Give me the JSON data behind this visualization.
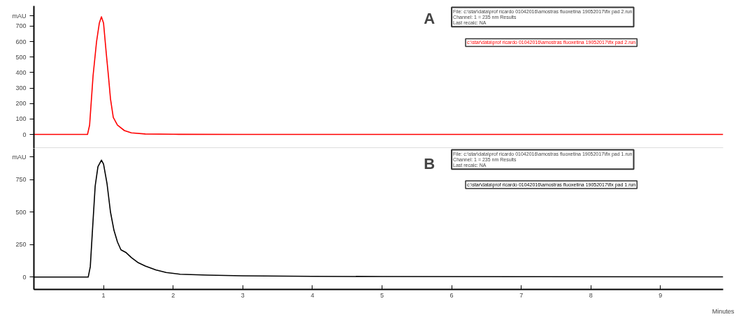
{
  "chart_data": [
    {
      "type": "line",
      "title": "A",
      "ylabel": "mAU",
      "xlim": [
        0,
        9.9
      ],
      "ylim": [
        -90,
        830
      ],
      "yticks": [
        0,
        100,
        200,
        300,
        400,
        500,
        600,
        700
      ],
      "tick_labels": "y",
      "grid": false,
      "marker": "none",
      "line_style": "solid",
      "annotations": [
        "File: c:\\star\\data\\prof ricardo 01042016\\amostras fluoxetina 19052017\\flx pad 2.run\nChannel: 1 = 235 nm Results\nLast recalc: NA",
        "c:\\star\\data\\prof ricardo 01042016\\amostras fluoxetina 19052017\\flx pad 2.run"
      ],
      "series": [
        {
          "color": "#ff0000",
          "x": [
            0,
            0.3,
            0.6,
            0.77,
            0.8,
            0.85,
            0.9,
            0.94,
            0.97,
            1.0,
            1.04,
            1.07,
            1.1,
            1.14,
            1.2,
            1.3,
            1.4,
            1.6,
            2,
            3,
            4,
            5,
            6,
            7,
            8,
            9,
            9.9
          ],
          "values": [
            0,
            0,
            0,
            0,
            60,
            380,
            600,
            720,
            760,
            720,
            520,
            380,
            230,
            110,
            60,
            25,
            10,
            3,
            1,
            0,
            0,
            0,
            0,
            0,
            0,
            0,
            0
          ]
        }
      ]
    },
    {
      "type": "line",
      "title": "B",
      "ylabel": "mAU",
      "xlabel": "Minutes",
      "xlim": [
        0,
        9.9
      ],
      "ylim": [
        -95,
        990
      ],
      "xticks": [
        {
          "value": 0,
          "label": null
        },
        1,
        2,
        3,
        4,
        5,
        6,
        7,
        8,
        9
      ],
      "yticks": [
        0,
        250,
        500,
        750
      ],
      "grid": false,
      "marker": "none",
      "line_style": "solid",
      "annotations": [
        "File: c:\\star\\data\\prof ricardo 01042016\\amostras fluoxetina 19052017\\flx pad 1.run\nChannel: 1 = 235 nm Results\nLast recalc: NA",
        "c:\\star\\data\\prof ricardo 01042016\\amostras fluoxetina 19052017\\flx pad 1.run"
      ],
      "series": [
        {
          "color": "#000000",
          "x": [
            0,
            0.3,
            0.6,
            0.78,
            0.81,
            0.84,
            0.88,
            0.92,
            0.97,
            1.0,
            1.05,
            1.1,
            1.15,
            1.2,
            1.25,
            1.32,
            1.4,
            1.5,
            1.6,
            1.75,
            1.9,
            2.1,
            2.5,
            3,
            4,
            5,
            7,
            9.9
          ],
          "values": [
            0,
            0,
            0,
            0,
            80,
            350,
            700,
            850,
            900,
            870,
            720,
            500,
            360,
            270,
            210,
            190,
            150,
            110,
            85,
            55,
            35,
            22,
            15,
            10,
            6,
            4,
            3,
            2
          ]
        }
      ]
    }
  ]
}
